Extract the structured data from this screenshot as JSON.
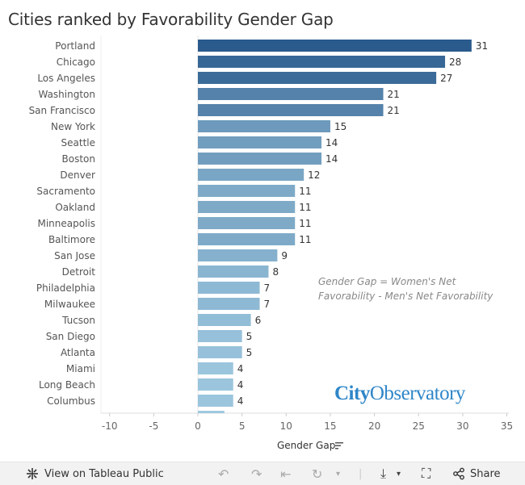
{
  "chart_data": {
    "type": "bar",
    "orientation": "horizontal",
    "title": "Cities ranked by Favorability Gender Gap",
    "xlabel": "Gender Gap",
    "xlim": [
      -10,
      35
    ],
    "xticks": [
      -10,
      -5,
      0,
      5,
      10,
      15,
      20,
      25,
      30,
      35
    ],
    "categories": [
      "Portland",
      "Chicago",
      "Los Angeles",
      "Washington",
      "San Francisco",
      "New York",
      "Seattle",
      "Boston",
      "Denver",
      "Sacramento",
      "Oakland",
      "Minneapolis",
      "Baltimore",
      "San Jose",
      "Detroit",
      "Philadelphia",
      "Milwaukee",
      "Tucson",
      "San Diego",
      "Atlanta",
      "Miami",
      "Long Beach",
      "Columbus",
      ""
    ],
    "values": [
      31,
      28,
      27,
      21,
      21,
      15,
      14,
      14,
      12,
      11,
      11,
      11,
      11,
      9,
      8,
      7,
      7,
      6,
      5,
      5,
      4,
      4,
      4,
      3
    ],
    "annotation": [
      "Gender Gap = Women's Net",
      "Favorability - Men's Net Favorability"
    ],
    "color_dark": "#2a5b8c",
    "color_light": "#9fc9e0"
  },
  "logo": {
    "part1": "City",
    "part2": "Observatory",
    "color1": "#2f86c8",
    "color2": "#2f86c8"
  },
  "footer": {
    "view_label": "View on Tableau Public",
    "share_label": "Share"
  }
}
